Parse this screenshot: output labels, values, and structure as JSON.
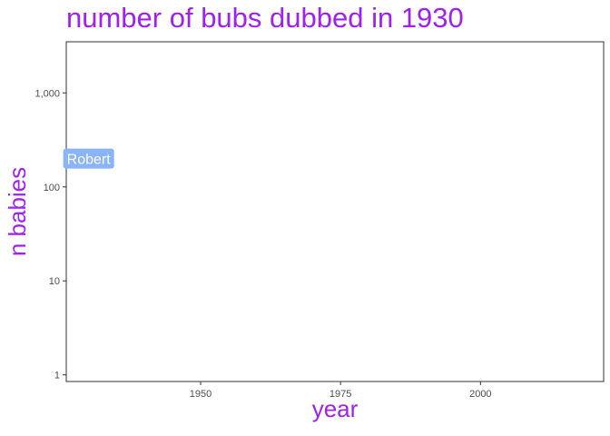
{
  "chart_data": {
    "type": "scatter",
    "title": "number of bubs dubbed in 1930",
    "xlabel": "year",
    "ylabel": "n babies",
    "x_ticks": [
      1950,
      1975,
      2000
    ],
    "x_tick_labels": [
      "1950",
      "1975",
      "2000"
    ],
    "xlim": [
      1926,
      2022
    ],
    "y_scale": "log10",
    "y_ticks": [
      1,
      10,
      100,
      1000
    ],
    "y_tick_labels": [
      "1",
      "10",
      "100",
      "1,000"
    ],
    "ylim": [
      0.85,
      3500
    ],
    "grid": false,
    "legend": "none",
    "points": [
      {
        "label": "Robert",
        "x": 1930,
        "y": 200
      }
    ]
  },
  "colors": {
    "title": "#a020f0",
    "axis_title": "#a020f0",
    "label_fill": "#8ab4f8",
    "label_text": "#ffffff",
    "panel_border": "#333333",
    "tick": "#333333"
  }
}
